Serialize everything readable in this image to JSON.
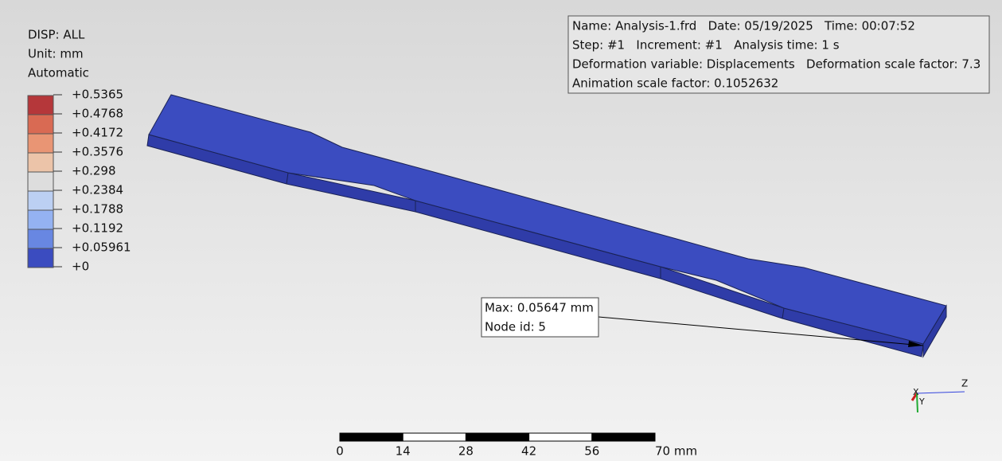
{
  "legend": {
    "title_lines": [
      "DISP: ALL",
      "Unit: mm",
      "Automatic"
    ],
    "labels": [
      "+0.5365",
      "+0.4768",
      "+0.4172",
      "+0.3576",
      "+0.298",
      "+0.2384",
      "+0.1788",
      "+0.1192",
      "+0.05961",
      "+0"
    ],
    "colors": [
      "#b5373a",
      "#d96a53",
      "#e99574",
      "#ecc4a9",
      "#dddddd",
      "#bcd0f3",
      "#94b2f2",
      "#6887e2",
      "#3b4cc0"
    ]
  },
  "info_box": {
    "lines": [
      "Name: Analysis-1.frd   Date: 05/19/2025   Time: 00:07:52",
      "Step: #1   Increment: #1   Analysis time: 1 s",
      "Deformation variable: Displacements   Deformation scale factor: 7.3",
      "Animation scale factor: 0.1052632"
    ]
  },
  "max_box": {
    "lines": [
      "Max: 0.05647 mm",
      "Node id: 5"
    ]
  },
  "scale_bar": {
    "labels": [
      "0",
      "14",
      "28",
      "42",
      "56",
      "70 mm"
    ]
  },
  "axes": {
    "z": "Z",
    "x": "X",
    "y": "Y"
  }
}
